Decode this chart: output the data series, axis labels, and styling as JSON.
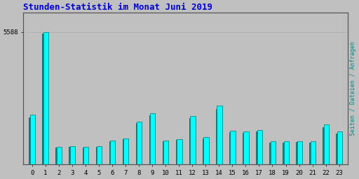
{
  "title": "Stunden-Statistik im Monat Juni 2019",
  "title_color": "#0000cc",
  "title_fontsize": 9,
  "background_color": "#c0c0c0",
  "plot_bg_color": "#c0c0c0",
  "ylabel_right": "Seiten / Dateien / Anfragen",
  "hours": [
    0,
    1,
    2,
    3,
    4,
    5,
    6,
    7,
    8,
    9,
    10,
    11,
    12,
    13,
    14,
    15,
    16,
    17,
    18,
    19,
    20,
    21,
    22,
    23
  ],
  "seiten": [
    2100,
    5580,
    730,
    770,
    730,
    760,
    1020,
    1100,
    1820,
    2150,
    1020,
    1080,
    2050,
    1150,
    2480,
    1430,
    1400,
    1450,
    970,
    980,
    990,
    980,
    1680,
    1390
  ],
  "anfragen": [
    1980,
    5520,
    700,
    740,
    700,
    730,
    980,
    1060,
    1760,
    2080,
    980,
    1040,
    1950,
    1090,
    2350,
    1350,
    1320,
    1380,
    920,
    930,
    950,
    930,
    1580,
    1310
  ],
  "color_seiten": "#00ffff",
  "color_anfragen": "#008b8b",
  "bar_width": 0.38,
  "grid_color": "#b0b0b0",
  "ylim": [
    0,
    6400
  ],
  "ytick_val": 5588,
  "font_family": "monospace",
  "border_color": "#555555"
}
